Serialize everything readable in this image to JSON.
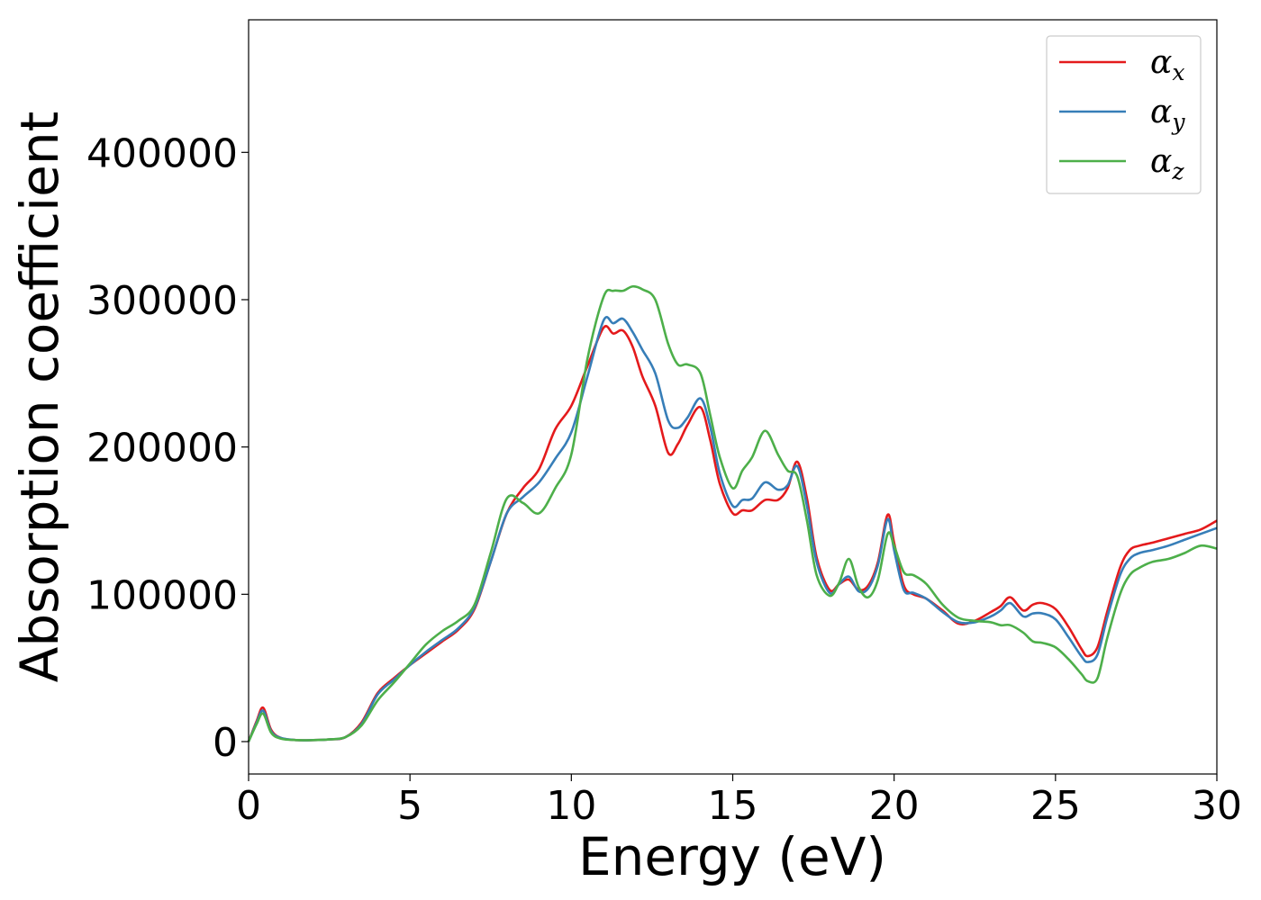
{
  "chart_data": {
    "type": "line",
    "xlabel": "Energy (eV)",
    "ylabel": "Absorption coefficient",
    "xlim": [
      0,
      30
    ],
    "ylim": [
      -22000,
      490000
    ],
    "xticks": [
      0,
      5,
      10,
      15,
      20,
      25,
      30
    ],
    "yticks": [
      0,
      100000,
      200000,
      300000,
      400000
    ],
    "grid": false,
    "legend_position": "top-right",
    "series": [
      {
        "name": "α",
        "subscript": "x",
        "color": "#e41a1c",
        "x": [
          0,
          0.25,
          0.45,
          0.7,
          1.0,
          1.5,
          2.0,
          2.5,
          3.0,
          3.5,
          4.0,
          4.5,
          5.0,
          5.5,
          6.0,
          6.5,
          7.0,
          7.5,
          8.0,
          8.5,
          9.0,
          9.5,
          10.0,
          10.5,
          11.0,
          11.3,
          11.6,
          11.9,
          12.2,
          12.6,
          13.0,
          13.3,
          13.6,
          14.0,
          14.3,
          14.6,
          15.0,
          15.3,
          15.6,
          16.0,
          16.4,
          16.7,
          17.0,
          17.3,
          17.6,
          18.0,
          18.3,
          18.6,
          18.9,
          19.2,
          19.5,
          19.8,
          20.0,
          20.3,
          20.6,
          21.0,
          21.5,
          22.0,
          22.5,
          23.0,
          23.3,
          23.6,
          24.0,
          24.3,
          24.6,
          25.0,
          25.4,
          25.8,
          26.0,
          26.3,
          26.6,
          27.0,
          27.3,
          27.6,
          28.0,
          28.5,
          29.0,
          29.5,
          30.0
        ],
        "y": [
          0,
          14000,
          23000,
          8000,
          2500,
          1000,
          1000,
          1500,
          3000,
          13000,
          33000,
          43000,
          52000,
          60000,
          68000,
          76000,
          90000,
          122000,
          155000,
          172000,
          185000,
          212000,
          228000,
          255000,
          281000,
          277000,
          279000,
          268000,
          248000,
          228000,
          196000,
          202000,
          215000,
          227000,
          205000,
          175000,
          155000,
          157000,
          157000,
          164000,
          164000,
          172000,
          190000,
          165000,
          125000,
          103000,
          107000,
          110000,
          103000,
          106000,
          122000,
          154000,
          135000,
          106000,
          100000,
          97000,
          89000,
          80000,
          82000,
          88000,
          92000,
          98000,
          89000,
          93000,
          94000,
          90000,
          78000,
          63000,
          58000,
          64000,
          88000,
          118000,
          130000,
          133000,
          135000,
          138000,
          141000,
          144000,
          150000
        ]
      },
      {
        "name": "α",
        "subscript": "y",
        "color": "#377eb8",
        "x": [
          0,
          0.25,
          0.45,
          0.7,
          1.0,
          1.5,
          2.0,
          2.5,
          3.0,
          3.5,
          4.0,
          4.5,
          5.0,
          5.5,
          6.0,
          6.5,
          7.0,
          7.5,
          8.0,
          8.5,
          9.0,
          9.5,
          10.0,
          10.5,
          11.0,
          11.3,
          11.6,
          11.9,
          12.2,
          12.6,
          13.0,
          13.3,
          13.6,
          14.0,
          14.3,
          14.6,
          15.0,
          15.3,
          15.6,
          16.0,
          16.4,
          16.7,
          17.0,
          17.3,
          17.6,
          18.0,
          18.3,
          18.6,
          18.9,
          19.2,
          19.5,
          19.8,
          20.0,
          20.3,
          20.6,
          21.0,
          21.5,
          22.0,
          22.5,
          23.0,
          23.3,
          23.6,
          24.0,
          24.3,
          24.6,
          25.0,
          25.4,
          25.8,
          26.0,
          26.3,
          26.6,
          27.0,
          27.3,
          27.6,
          28.0,
          28.5,
          29.0,
          29.5,
          30.0
        ],
        "y": [
          0,
          13000,
          21000,
          7000,
          2500,
          1000,
          1000,
          1500,
          3000,
          12000,
          32000,
          42000,
          52000,
          61000,
          69000,
          77000,
          91000,
          122000,
          155000,
          166000,
          176000,
          192000,
          210000,
          248000,
          286000,
          284000,
          287000,
          278000,
          266000,
          250000,
          218000,
          213000,
          220000,
          233000,
          214000,
          182000,
          160000,
          164000,
          165000,
          176000,
          171000,
          174000,
          187000,
          160000,
          122000,
          101000,
          107000,
          112000,
          102000,
          104000,
          120000,
          151000,
          130000,
          103000,
          101000,
          97000,
          88000,
          81000,
          81000,
          85000,
          89000,
          94000,
          85000,
          87000,
          87000,
          83000,
          71000,
          58000,
          54000,
          59000,
          84000,
          113000,
          124000,
          128000,
          130000,
          133000,
          137000,
          141000,
          145000
        ]
      },
      {
        "name": "α",
        "subscript": "z",
        "color": "#4daf4a",
        "x": [
          0,
          0.25,
          0.45,
          0.7,
          1.0,
          1.5,
          2.0,
          2.5,
          3.0,
          3.5,
          4.0,
          4.5,
          5.0,
          5.5,
          6.0,
          6.5,
          7.0,
          7.5,
          8.0,
          8.5,
          9.0,
          9.5,
          10.0,
          10.5,
          11.0,
          11.3,
          11.6,
          11.9,
          12.2,
          12.6,
          13.0,
          13.3,
          13.6,
          14.0,
          14.3,
          14.6,
          15.0,
          15.3,
          15.6,
          16.0,
          16.4,
          16.7,
          17.0,
          17.3,
          17.6,
          18.0,
          18.3,
          18.6,
          18.9,
          19.2,
          19.5,
          19.8,
          20.0,
          20.3,
          20.6,
          21.0,
          21.5,
          22.0,
          22.5,
          23.0,
          23.3,
          23.6,
          24.0,
          24.3,
          24.6,
          25.0,
          25.4,
          25.8,
          26.0,
          26.3,
          26.6,
          27.0,
          27.3,
          27.6,
          28.0,
          28.5,
          29.0,
          29.5,
          30.0
        ],
        "y": [
          0,
          12000,
          19000,
          6000,
          2000,
          1000,
          1000,
          1500,
          3000,
          11000,
          28000,
          40000,
          53000,
          66000,
          75000,
          82000,
          93000,
          128000,
          165000,
          162000,
          155000,
          172000,
          195000,
          260000,
          302000,
          306000,
          306000,
          309000,
          307000,
          300000,
          270000,
          256000,
          256000,
          250000,
          222000,
          193000,
          172000,
          184000,
          193000,
          211000,
          195000,
          184000,
          180000,
          150000,
          113000,
          99000,
          108000,
          124000,
          105000,
          98000,
          110000,
          141000,
          133000,
          115000,
          113000,
          107000,
          93000,
          84000,
          82000,
          81000,
          79000,
          79000,
          74000,
          68000,
          67000,
          64000,
          56000,
          46000,
          41000,
          43000,
          70000,
          100000,
          113000,
          118000,
          122000,
          124000,
          128000,
          133000,
          131000
        ]
      }
    ]
  }
}
